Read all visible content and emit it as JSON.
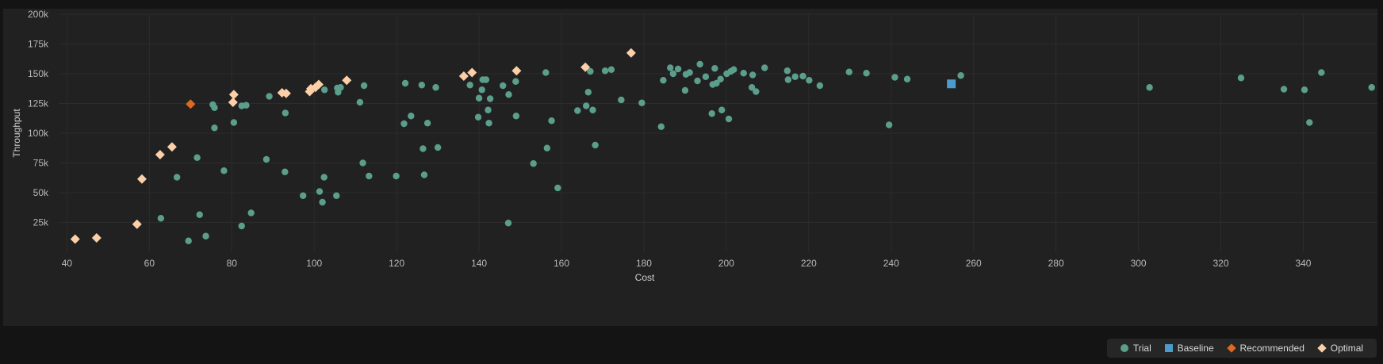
{
  "chart_data": {
    "type": "scatter",
    "xlabel": "Cost",
    "ylabel": "Throughput",
    "xlim": [
      38,
      358
    ],
    "ylim": [
      0,
      200000
    ],
    "xticks": [
      40,
      60,
      80,
      100,
      120,
      140,
      160,
      180,
      200,
      220,
      240,
      260,
      280,
      300,
      320,
      340
    ],
    "yticks": [
      25000,
      50000,
      75000,
      100000,
      125000,
      150000,
      175000,
      200000
    ],
    "ytick_labels": [
      "25k",
      "50k",
      "75k",
      "100k",
      "125k",
      "150k",
      "175k",
      "200k"
    ],
    "grid": true,
    "legend_position": "bottom-right",
    "series": [
      {
        "name": "Trial",
        "marker": "circle",
        "color": "#5b9e8c",
        "points": [
          [
            69.5,
            9500
          ],
          [
            73.7,
            13500
          ],
          [
            82.4,
            22000
          ],
          [
            84.7,
            33000
          ],
          [
            62.8,
            28500
          ],
          [
            72.2,
            31500
          ],
          [
            66.7,
            63000
          ],
          [
            71.6,
            79500
          ],
          [
            78.1,
            68500
          ],
          [
            75.8,
            104500
          ],
          [
            75.4,
            124000
          ],
          [
            75.8,
            121500
          ],
          [
            80.5,
            109000
          ],
          [
            82.4,
            123000
          ],
          [
            83.5,
            123500
          ],
          [
            89.1,
            131000
          ],
          [
            88.4,
            78000
          ],
          [
            93.0,
            117000
          ],
          [
            92.9,
            67500
          ],
          [
            97.3,
            47500
          ],
          [
            101.3,
            51000
          ],
          [
            102.0,
            42000
          ],
          [
            102.4,
            63000
          ],
          [
            105.4,
            47500
          ],
          [
            102.5,
            136500
          ],
          [
            105.6,
            138000
          ],
          [
            105.8,
            134500
          ],
          [
            106.4,
            138500
          ],
          [
            111.1,
            126000
          ],
          [
            111.8,
            75000
          ],
          [
            112.1,
            140000
          ],
          [
            113.3,
            64000
          ],
          [
            119.9,
            64000
          ],
          [
            121.8,
            108000
          ],
          [
            122.1,
            142000
          ],
          [
            123.5,
            114500
          ],
          [
            126.1,
            140500
          ],
          [
            126.4,
            87000
          ],
          [
            126.7,
            65000
          ],
          [
            127.5,
            108500
          ],
          [
            129.5,
            138500
          ],
          [
            130.0,
            88000
          ],
          [
            137.8,
            140500
          ],
          [
            139.8,
            113500
          ],
          [
            140.0,
            129500
          ],
          [
            140.7,
            136500
          ],
          [
            140.9,
            145000
          ],
          [
            141.7,
            145000
          ],
          [
            142.2,
            119500
          ],
          [
            142.4,
            108500
          ],
          [
            142.7,
            129000
          ],
          [
            145.8,
            140000
          ],
          [
            147.1,
            24500
          ],
          [
            147.2,
            132500
          ],
          [
            148.9,
            143500
          ],
          [
            149.0,
            114500
          ],
          [
            153.2,
            74500
          ],
          [
            156.2,
            151000
          ],
          [
            156.5,
            87500
          ],
          [
            157.6,
            110500
          ],
          [
            159.1,
            54000
          ],
          [
            163.9,
            119000
          ],
          [
            166.0,
            123000
          ],
          [
            166.5,
            134500
          ],
          [
            167.0,
            152000
          ],
          [
            167.6,
            119500
          ],
          [
            168.2,
            90000
          ],
          [
            170.6,
            152500
          ],
          [
            172.1,
            153500
          ],
          [
            174.5,
            128000
          ],
          [
            179.5,
            125500
          ],
          [
            184.2,
            105500
          ],
          [
            184.7,
            144500
          ],
          [
            186.4,
            155000
          ],
          [
            187.1,
            150000
          ],
          [
            188.3,
            154000
          ],
          [
            190.0,
            136000
          ],
          [
            190.2,
            149500
          ],
          [
            191.1,
            151000
          ],
          [
            193.0,
            144000
          ],
          [
            193.6,
            158000
          ],
          [
            195.0,
            147500
          ],
          [
            196.5,
            116500
          ],
          [
            196.7,
            141000
          ],
          [
            197.2,
            154500
          ],
          [
            197.6,
            142000
          ],
          [
            198.6,
            145500
          ],
          [
            198.9,
            119500
          ],
          [
            200.1,
            150000
          ],
          [
            200.6,
            112000
          ],
          [
            201.1,
            152000
          ],
          [
            201.8,
            153500
          ],
          [
            204.2,
            150500
          ],
          [
            206.2,
            138500
          ],
          [
            206.4,
            149000
          ],
          [
            207.2,
            135000
          ],
          [
            209.3,
            155000
          ],
          [
            214.8,
            152500
          ],
          [
            215.0,
            145000
          ],
          [
            216.7,
            147500
          ],
          [
            218.6,
            148000
          ],
          [
            220.1,
            144500
          ],
          [
            222.7,
            140000
          ],
          [
            229.8,
            151500
          ],
          [
            234.0,
            150500
          ],
          [
            239.5,
            107000
          ],
          [
            240.9,
            147000
          ],
          [
            243.9,
            145500
          ],
          [
            256.9,
            148500
          ],
          [
            302.7,
            138500
          ],
          [
            324.9,
            146500
          ],
          [
            335.3,
            137000
          ],
          [
            340.3,
            136500
          ],
          [
            341.5,
            109000
          ],
          [
            344.4,
            151000
          ],
          [
            356.6,
            138500
          ]
        ]
      },
      {
        "name": "Baseline",
        "marker": "square",
        "color": "#4b9ccc",
        "points": [
          [
            254.6,
            141500
          ]
        ]
      },
      {
        "name": "Recommended",
        "marker": "diamond",
        "color": "#dd6a22",
        "points": [
          [
            70.0,
            124500
          ]
        ]
      },
      {
        "name": "Optimal",
        "marker": "diamond",
        "color": "#fbcfa8",
        "points": [
          [
            42.0,
            11000
          ],
          [
            47.2,
            12000
          ],
          [
            57.0,
            23500
          ],
          [
            58.2,
            61500
          ],
          [
            62.6,
            82000
          ],
          [
            65.5,
            88500
          ],
          [
            80.3,
            126000
          ],
          [
            80.5,
            132500
          ],
          [
            92.2,
            134000
          ],
          [
            93.2,
            133500
          ],
          [
            98.9,
            135000
          ],
          [
            99.2,
            137500
          ],
          [
            100.3,
            138500
          ],
          [
            101.1,
            141000
          ],
          [
            107.9,
            144500
          ],
          [
            136.3,
            148000
          ],
          [
            138.3,
            151000
          ],
          [
            149.1,
            152500
          ],
          [
            165.8,
            155500
          ],
          [
            176.9,
            167500
          ]
        ]
      }
    ]
  }
}
